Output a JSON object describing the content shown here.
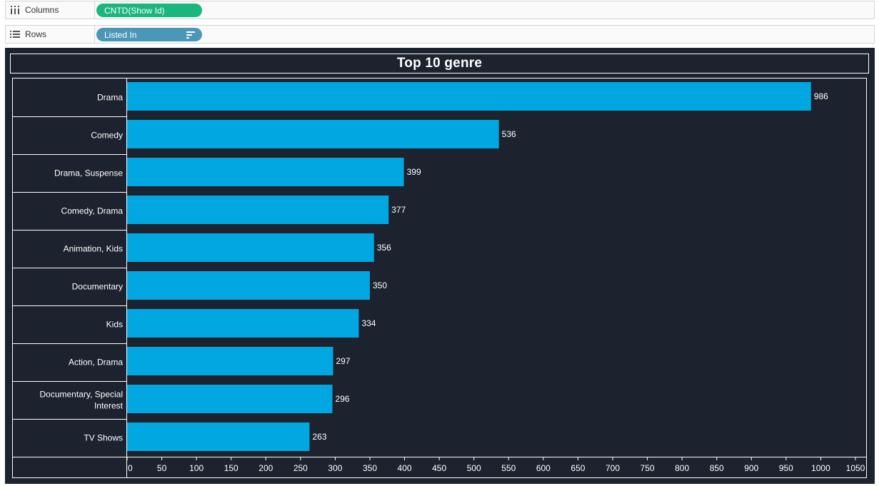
{
  "shelves": {
    "columns": {
      "label": "Columns",
      "pill": "CNTD(Show Id)",
      "pill_color": "#1bb57e",
      "icon": "columns-icon"
    },
    "rows": {
      "label": "Rows",
      "pill": "Listed In",
      "pill_color": "#4a97b7",
      "icon": "rows-icon",
      "sort_icon": "sort-descending-icon"
    }
  },
  "colors": {
    "background": "#1c222e",
    "bar": "#00a7e1",
    "text": "#ffffff"
  },
  "chart_data": {
    "type": "bar",
    "orientation": "horizontal",
    "title": "Top 10 genre",
    "categories": [
      "Drama",
      "Comedy",
      "Drama, Suspense",
      "Comedy, Drama",
      "Animation, Kids",
      "Documentary",
      "Kids",
      "Action, Drama",
      "Documentary, Special Interest",
      "TV Shows"
    ],
    "category_lines": [
      [
        "Drama"
      ],
      [
        "Comedy"
      ],
      [
        "Drama, Suspense"
      ],
      [
        "Comedy, Drama"
      ],
      [
        "Animation, Kids"
      ],
      [
        "Documentary"
      ],
      [
        "Kids"
      ],
      [
        "Action, Drama"
      ],
      [
        "Documentary, Special",
        "Interest"
      ],
      [
        "TV Shows"
      ]
    ],
    "values": [
      986,
      536,
      399,
      377,
      356,
      350,
      334,
      297,
      296,
      263
    ],
    "xlim": [
      0,
      1050
    ],
    "xticks": [
      0,
      50,
      100,
      150,
      200,
      250,
      300,
      350,
      400,
      450,
      500,
      550,
      600,
      650,
      700,
      750,
      800,
      850,
      900,
      950,
      1000,
      1050
    ],
    "xlabel": "",
    "ylabel": ""
  }
}
